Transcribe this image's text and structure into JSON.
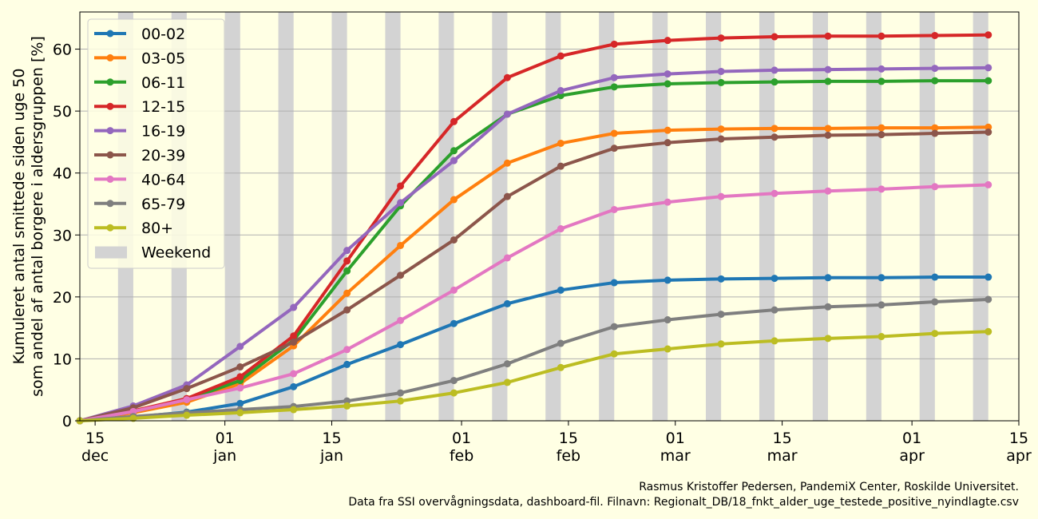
{
  "chart_data": {
    "type": "line",
    "title": "",
    "xlabel": "",
    "ylabel_line1": "Kumuleret antal smittede siden uge 50",
    "ylabel_line2": "som andel af antal borgere i aldersgruppen [%]",
    "ylim": [
      0,
      66
    ],
    "xlim": [
      "2021-12-13",
      "2022-04-15"
    ],
    "grid": "horizontal",
    "legend_placement": "top-left",
    "x_ticks": [
      {
        "date": "2021-12-15",
        "label1": "15",
        "label2": "dec"
      },
      {
        "date": "2022-01-01",
        "label1": "01",
        "label2": "jan"
      },
      {
        "date": "2022-01-15",
        "label1": "15",
        "label2": "jan"
      },
      {
        "date": "2022-02-01",
        "label1": "01",
        "label2": "feb"
      },
      {
        "date": "2022-02-15",
        "label1": "15",
        "label2": "feb"
      },
      {
        "date": "2022-03-01",
        "label1": "01",
        "label2": "mar"
      },
      {
        "date": "2022-03-15",
        "label1": "15",
        "label2": "mar"
      },
      {
        "date": "2022-04-01",
        "label1": "01",
        "label2": "apr"
      },
      {
        "date": "2022-04-15",
        "label1": "15",
        "label2": "apr"
      }
    ],
    "y_ticks": [
      0,
      10,
      20,
      30,
      40,
      50,
      60
    ],
    "weekend_label": "Weekend",
    "weekend_color": "#d3d3d3",
    "weekends": [
      "2021-12-18",
      "2021-12-25",
      "2022-01-01",
      "2022-01-08",
      "2022-01-15",
      "2022-01-22",
      "2022-01-29",
      "2022-02-05",
      "2022-02-12",
      "2022-02-19",
      "2022-02-26",
      "2022-03-05",
      "2022-03-12",
      "2022-03-19",
      "2022-03-26",
      "2022-04-02",
      "2022-04-09",
      "2022-04-16"
    ],
    "x": [
      "2021-12-13",
      "2021-12-20",
      "2021-12-27",
      "2022-01-03",
      "2022-01-10",
      "2022-01-17",
      "2022-01-24",
      "2022-01-31",
      "2022-02-07",
      "2022-02-14",
      "2022-02-21",
      "2022-02-28",
      "2022-03-07",
      "2022-03-14",
      "2022-03-21",
      "2022-03-28",
      "2022-04-04",
      "2022-04-11"
    ],
    "series": [
      {
        "name": "00-02",
        "color": "#1f77b4",
        "values": [
          0,
          0.6,
          1.4,
          2.8,
          5.5,
          9.1,
          12.3,
          15.7,
          18.9,
          21.1,
          22.3,
          22.7,
          22.9,
          23.0,
          23.1,
          23.1,
          23.2,
          23.2
        ]
      },
      {
        "name": "03-05",
        "color": "#ff7f0e",
        "values": [
          0,
          1.3,
          3.0,
          6.0,
          12.1,
          20.6,
          28.3,
          35.7,
          41.6,
          44.8,
          46.4,
          46.9,
          47.1,
          47.2,
          47.2,
          47.3,
          47.3,
          47.4
        ]
      },
      {
        "name": "06-11",
        "color": "#2ca02c",
        "values": [
          0,
          1.5,
          3.4,
          6.5,
          13.0,
          24.2,
          34.7,
          43.6,
          49.5,
          52.5,
          53.9,
          54.4,
          54.6,
          54.7,
          54.8,
          54.8,
          54.9,
          54.9
        ]
      },
      {
        "name": "12-15",
        "color": "#d62728",
        "values": [
          0,
          1.6,
          3.6,
          7.1,
          13.7,
          25.8,
          37.9,
          48.3,
          55.4,
          58.9,
          60.8,
          61.4,
          61.8,
          62.0,
          62.1,
          62.1,
          62.2,
          62.3
        ]
      },
      {
        "name": "16-19",
        "color": "#9467bd",
        "values": [
          0,
          2.4,
          5.8,
          12.0,
          18.3,
          27.5,
          35.2,
          42.0,
          49.5,
          53.3,
          55.4,
          56.0,
          56.4,
          56.6,
          56.7,
          56.8,
          56.9,
          57.0
        ]
      },
      {
        "name": "20-39",
        "color": "#8c564b",
        "values": [
          0,
          2.1,
          5.2,
          8.7,
          12.7,
          17.9,
          23.5,
          29.2,
          36.2,
          41.1,
          44.0,
          44.9,
          45.5,
          45.8,
          46.1,
          46.2,
          46.4,
          46.6
        ]
      },
      {
        "name": "40-64",
        "color": "#e377c2",
        "values": [
          0,
          1.5,
          3.4,
          5.3,
          7.6,
          11.5,
          16.2,
          21.1,
          26.3,
          31.0,
          34.1,
          35.3,
          36.2,
          36.7,
          37.1,
          37.4,
          37.8,
          38.1
        ]
      },
      {
        "name": "65-79",
        "color": "#7f7f7f",
        "values": [
          0,
          0.7,
          1.3,
          1.8,
          2.3,
          3.2,
          4.5,
          6.5,
          9.2,
          12.5,
          15.2,
          16.3,
          17.2,
          17.9,
          18.4,
          18.7,
          19.2,
          19.6
        ]
      },
      {
        "name": "80+",
        "color": "#bcbd22",
        "values": [
          0,
          0.4,
          0.9,
          1.3,
          1.8,
          2.4,
          3.2,
          4.5,
          6.2,
          8.6,
          10.8,
          11.6,
          12.4,
          12.9,
          13.3,
          13.6,
          14.1,
          14.4
        ]
      }
    ],
    "credit_line1": "Rasmus Kristoffer Pedersen, PandemiX Center, Roskilde Universitet.",
    "credit_line2": "Data fra SSI overvågningsdata, dashboard-fil. Filnavn: Regionalt_DB/18_fnkt_alder_uge_testede_positive_nyindlagte.csv"
  }
}
